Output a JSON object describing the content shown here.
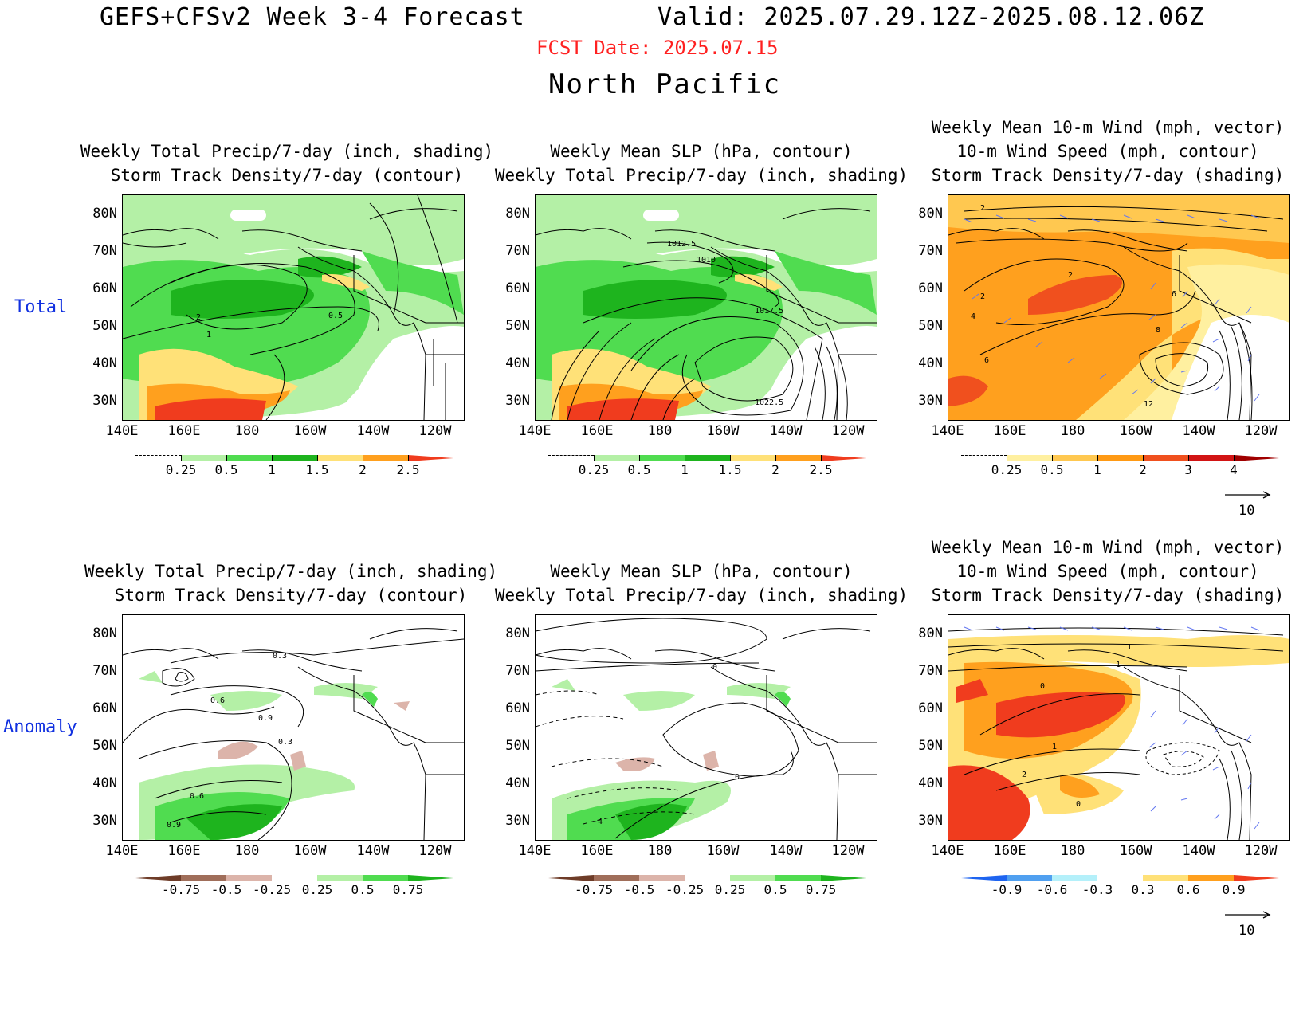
{
  "header": {
    "title": "GEFS+CFSv2 Week 3-4 Forecast",
    "valid": "Valid: 2025.07.29.12Z-2025.08.12.06Z",
    "fcst_date": "FCST Date: 2025.07.15",
    "region": "North Pacific"
  },
  "rows": {
    "total": "Total",
    "anomaly": "Anomaly"
  },
  "titles": {
    "precip_track": [
      "Weekly Total Precip/7-day (inch, shading)",
      "Storm Track Density/7-day (contour)"
    ],
    "slp_precip": [
      "Weekly Mean SLP (hPa, contour)",
      "Weekly Total Precip/7-day (inch, shading)"
    ],
    "wind_track": [
      "Weekly Mean 10-m Wind (mph, vector)",
      "10-m Wind Speed (mph, contour)",
      "Storm Track Density/7-day (shading)"
    ]
  },
  "axes": {
    "lat": [
      "80N",
      "70N",
      "60N",
      "50N",
      "40N",
      "30N"
    ],
    "lon": [
      "140E",
      "160E",
      "180",
      "160W",
      "140W",
      "120W"
    ]
  },
  "colorbars": {
    "precip_total": [
      "0.25",
      "0.5",
      "1",
      "1.5",
      "2",
      "2.5"
    ],
    "track_total": [
      "0.25",
      "0.5",
      "1",
      "2",
      "3",
      "4"
    ],
    "precip_anom": [
      "-0.75",
      "-0.5",
      "-0.25",
      "0.25",
      "0.5",
      "0.75"
    ],
    "track_anom": [
      "-0.9",
      "-0.6",
      "-0.3",
      "0.3",
      "0.6",
      "0.9"
    ]
  },
  "vector_ref": "10",
  "contour_labels": {
    "p1": [
      "2",
      "1",
      "0.5"
    ],
    "p2": [
      "1012.5",
      "1010",
      "1017.5",
      "1022.5"
    ],
    "p3": [
      "2",
      "2",
      "2",
      "4",
      "6",
      "6",
      "8",
      "12"
    ],
    "p4": [
      "0.3",
      "0.6",
      "0.9",
      "0.3",
      "0.6",
      "0.9"
    ],
    "p5": [
      "0",
      "0",
      "-4"
    ],
    "p6": [
      "0",
      "1",
      "1",
      "1",
      "2",
      "0"
    ]
  },
  "colors": {
    "precip": [
      "#b4f0a6",
      "#50dc50",
      "#1eb41e",
      "#ffe178",
      "#ffa01e",
      "#f03c1e"
    ],
    "precip_anom": [
      "#6e3c28",
      "#a06e5a",
      "#dcb4aa",
      "#b4f0a6",
      "#50dc50",
      "#1eb41e"
    ],
    "track": [
      "#fff0a0",
      "#ffc850",
      "#ff9a14",
      "#f0501e",
      "#d21414",
      "#a00000"
    ],
    "track_anom": [
      "#1e64f0",
      "#50a0f0",
      "#b4f0fa",
      "#ffe178",
      "#ffa01e",
      "#f03c1e"
    ],
    "row_label": "#1030e0",
    "fcst": "#ff2020"
  }
}
